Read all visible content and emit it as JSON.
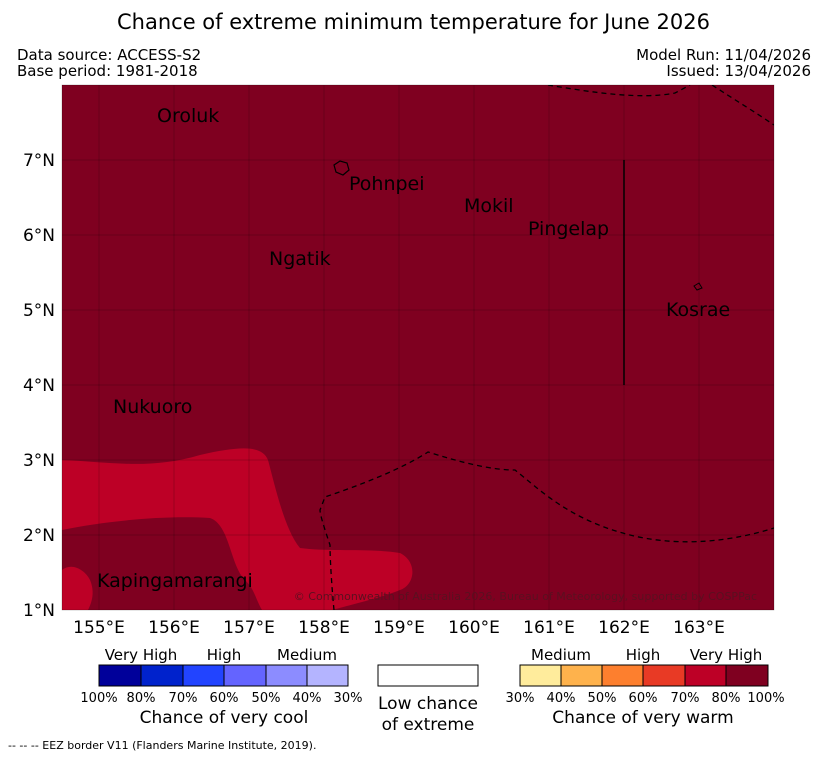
{
  "title": "Chance of extreme minimum temperature for June 2026",
  "header": {
    "data_source": "Data source: ACCESS-S2",
    "base_period": "Base period: 1981-2018",
    "model_run": "Model Run: 11/04/2026",
    "issued": "Issued: 13/04/2026"
  },
  "map": {
    "lon_range": [
      154.5,
      164.0
    ],
    "lat_range": [
      1.0,
      8.0
    ],
    "lon_ticks": [
      "155°E",
      "156°E",
      "157°E",
      "158°E",
      "159°E",
      "160°E",
      "161°E",
      "162°E",
      "163°E"
    ],
    "lat_ticks": [
      "1°N",
      "2°N",
      "3°N",
      "4°N",
      "5°N",
      "6°N",
      "7°N"
    ],
    "places": [
      {
        "name": "Oroluk"
      },
      {
        "name": "Pohnpei"
      },
      {
        "name": "Mokil"
      },
      {
        "name": "Pingelap"
      },
      {
        "name": "Ngatik"
      },
      {
        "name": "Kosrae"
      },
      {
        "name": "Nukuoro"
      },
      {
        "name": "Kapingamarangi"
      }
    ],
    "colors": {
      "very_high_warm": "#7f0020",
      "high_warm": "#bd0026",
      "border": "#000000"
    },
    "copyright": "© Commonwealth of Australia 2026, Bureau of Meteorology, supported by COSPPac"
  },
  "legend": {
    "cool": {
      "categories": [
        "Very High",
        "High",
        "Medium"
      ],
      "ticks": [
        "100%",
        "80%",
        "70%",
        "60%",
        "50%",
        "40%",
        "30%"
      ],
      "colors": [
        "#00009a",
        "#0022cc",
        "#2244ff",
        "#6464ff",
        "#8c8cff",
        "#b4b4ff"
      ],
      "label": "Chance of very cool"
    },
    "neutral": {
      "label_line1": "Low chance",
      "label_line2": "of extreme",
      "color": "#ffffff"
    },
    "warm": {
      "categories": [
        "Medium",
        "High",
        "Very High"
      ],
      "ticks": [
        "30%",
        "40%",
        "50%",
        "60%",
        "70%",
        "80%",
        "100%"
      ],
      "colors": [
        "#ffec9c",
        "#feb24c",
        "#fd7f2e",
        "#e83a25",
        "#bd0026",
        "#7f0020"
      ],
      "label": "Chance of very warm"
    }
  },
  "footer": "--  --  -- EEZ border V11 (Flanders Marine Institute, 2019)."
}
